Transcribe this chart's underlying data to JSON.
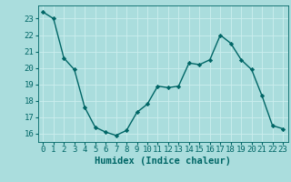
{
  "x": [
    0,
    1,
    2,
    3,
    4,
    5,
    6,
    7,
    8,
    9,
    10,
    11,
    12,
    13,
    14,
    15,
    16,
    17,
    18,
    19,
    20,
    21,
    22,
    23
  ],
  "y": [
    23.4,
    23.0,
    20.6,
    19.9,
    17.6,
    16.4,
    16.1,
    15.9,
    16.2,
    17.3,
    17.8,
    18.9,
    18.8,
    18.9,
    20.3,
    20.2,
    20.5,
    22.0,
    21.5,
    20.5,
    19.9,
    18.3,
    16.5,
    16.3
  ],
  "line_color": "#006666",
  "marker": "D",
  "markersize": 2.2,
  "linewidth": 1.0,
  "bg_color": "#aadddd",
  "grid_color": "#cceeee",
  "xlabel": "Humidex (Indice chaleur)",
  "ylabel": "",
  "xlim": [
    -0.5,
    23.5
  ],
  "ylim": [
    15.5,
    23.8
  ],
  "yticks": [
    16,
    17,
    18,
    19,
    20,
    21,
    22,
    23
  ],
  "xticks": [
    0,
    1,
    2,
    3,
    4,
    5,
    6,
    7,
    8,
    9,
    10,
    11,
    12,
    13,
    14,
    15,
    16,
    17,
    18,
    19,
    20,
    21,
    22,
    23
  ],
  "xlabel_fontsize": 7.5,
  "tick_fontsize": 6.5,
  "tick_color": "#006666",
  "axis_color": "#006666",
  "grid_linewidth": 0.6
}
